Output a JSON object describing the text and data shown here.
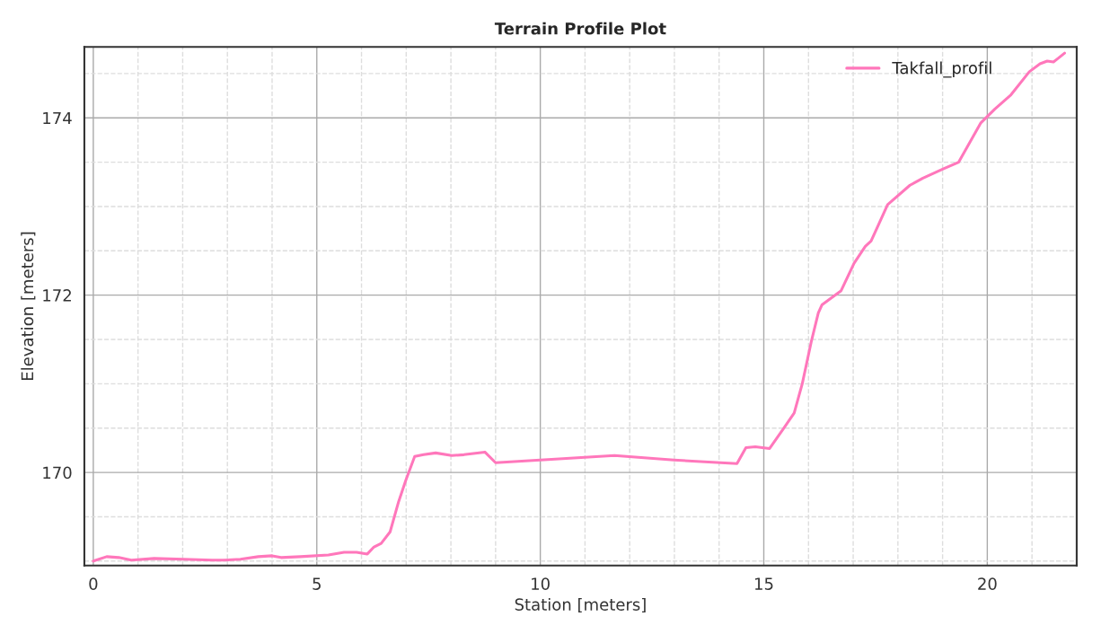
{
  "chart_data": {
    "type": "line",
    "title": "Terrain Profile Plot",
    "xlabel": "Station [meters]",
    "ylabel": "Elevation [meters]",
    "xlim": [
      -0.2,
      22
    ],
    "ylim": [
      168.95,
      174.8
    ],
    "xticks": [
      0,
      {
        "value": 1,
        "label": null
      },
      {
        "value": 2,
        "label": null
      },
      {
        "value": 3,
        "label": null
      },
      {
        "value": 4,
        "label": null
      },
      5,
      {
        "value": 6,
        "label": null
      },
      {
        "value": 7,
        "label": null
      },
      {
        "value": 8,
        "label": null
      },
      {
        "value": 9,
        "label": null
      },
      10,
      {
        "value": 11,
        "label": null
      },
      {
        "value": 12,
        "label": null
      },
      {
        "value": 13,
        "label": null
      },
      {
        "value": 14,
        "label": null
      },
      15,
      {
        "value": 16,
        "label": null
      },
      {
        "value": 17,
        "label": null
      },
      {
        "value": 18,
        "label": null
      },
      {
        "value": 19,
        "label": null
      },
      20,
      {
        "value": 21,
        "label": null
      }
    ],
    "yticks": [
      {
        "value": 169,
        "label": null
      },
      {
        "value": 169.5,
        "label": null
      },
      170,
      {
        "value": 170.5,
        "label": null
      },
      {
        "value": 171,
        "label": null
      },
      {
        "value": 171.5,
        "label": null
      },
      172,
      {
        "value": 172.5,
        "label": null
      },
      {
        "value": 173,
        "label": null
      },
      {
        "value": 173.5,
        "label": null
      },
      174,
      {
        "value": 174.5,
        "label": null
      }
    ],
    "grid": true,
    "legend": "top right",
    "line_style": "solid",
    "marker": "none",
    "series": [
      {
        "name": "Takfall_profil",
        "color": "#ff77bb",
        "x": [
          0,
          0.3,
          0.57,
          0.85,
          1.36,
          2.03,
          2.66,
          2.9,
          3.29,
          3.69,
          4.0,
          4.2,
          4.63,
          5.26,
          5.61,
          5.89,
          6.13,
          6.28,
          6.44,
          6.64,
          6.83,
          6.99,
          7.19,
          7.39,
          7.66,
          8.02,
          8.29,
          8.76,
          9.0,
          10.0,
          11.66,
          12.99,
          14.4,
          14.6,
          14.81,
          15.13,
          15.45,
          15.68,
          15.86,
          16.06,
          16.22,
          16.3,
          16.73,
          17.02,
          17.27,
          17.4,
          17.77,
          18.27,
          18.56,
          19.0,
          19.36,
          19.85,
          20.17,
          20.53,
          20.94,
          21.18,
          21.34,
          21.48,
          21.58,
          21.73
        ],
        "values": [
          169.0,
          169.05,
          169.04,
          169.01,
          169.03,
          169.02,
          169.01,
          169.01,
          169.02,
          169.05,
          169.06,
          169.04,
          169.05,
          169.07,
          169.1,
          169.1,
          169.08,
          169.16,
          169.2,
          169.33,
          169.67,
          169.91,
          170.18,
          170.2,
          170.22,
          170.19,
          170.2,
          170.23,
          170.11,
          170.14,
          170.19,
          170.14,
          170.1,
          170.28,
          170.29,
          170.27,
          170.5,
          170.67,
          171.0,
          171.47,
          171.8,
          171.89,
          172.05,
          172.36,
          172.55,
          172.61,
          173.02,
          173.24,
          173.32,
          173.42,
          173.5,
          173.94,
          174.1,
          174.26,
          174.52,
          174.61,
          174.64,
          174.63,
          174.67,
          174.73
        ]
      }
    ]
  }
}
